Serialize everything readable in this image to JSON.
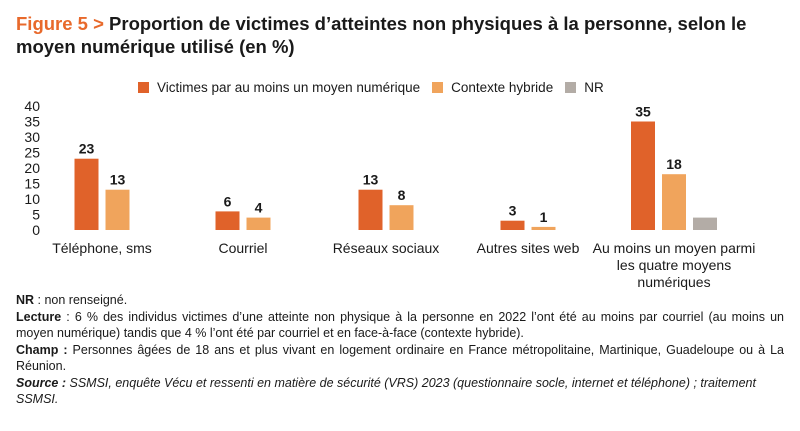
{
  "title": {
    "figure_label": "Figure 5 >",
    "text": "Proportion de victimes d’atteintes non physiques à la personne, selon le moyen numérique utilisé (en %)"
  },
  "colors": {
    "series1": "#e0622a",
    "series2": "#f0a45c",
    "series3": "#b3aca6",
    "figure_label": "#e8692b"
  },
  "chart_data": {
    "type": "bar",
    "categories": [
      [
        "Téléphone, sms"
      ],
      [
        "Courriel"
      ],
      [
        "Réseaux sociaux"
      ],
      [
        "Autres sites web"
      ],
      [
        "Au moins un moyen parmi",
        "les quatre moyens",
        "numériques"
      ]
    ],
    "series": [
      {
        "name": "Victimes par au moins un moyen numérique",
        "values": [
          23,
          6,
          13,
          3,
          35
        ],
        "labels": [
          "23",
          "6",
          "13",
          "3",
          "35"
        ]
      },
      {
        "name": "Contexte hybride",
        "values": [
          13,
          4,
          8,
          1,
          18
        ],
        "labels": [
          "13",
          "4",
          "8",
          "1",
          "18"
        ]
      },
      {
        "name": "NR",
        "values": [
          null,
          null,
          null,
          null,
          4
        ],
        "labels": [
          null,
          null,
          null,
          null,
          null
        ]
      }
    ],
    "yticks": [
      "0",
      "5",
      "10",
      "15",
      "20",
      "25",
      "30",
      "35",
      "40"
    ],
    "ylim": [
      0,
      40
    ],
    "grid": false,
    "legend_position": "top"
  },
  "notes": {
    "nr_label": "NR",
    "nr_text": " : non renseigné.",
    "lecture_label": "Lecture",
    "lecture_text": " : 6 % des individus victimes d’une atteinte non physique à la personne en 2022 l’ont été au moins par courriel (au moins un moyen numérique) tandis que 4 % l’ont été par courriel et en face-à-face (contexte hybride).",
    "champ_label": "Champ :",
    "champ_text": " Personnes âgées de 18 ans et plus vivant en logement ordinaire en France métropolitaine, Martinique, Guadeloupe ou à La Réunion.",
    "source_label": "Source :",
    "source_text": " SSMSI, enquête Vécu et ressenti en matière de sécurité (VRS) 2023 (questionnaire socle, internet et téléphone) ; traitement SSMSI."
  }
}
